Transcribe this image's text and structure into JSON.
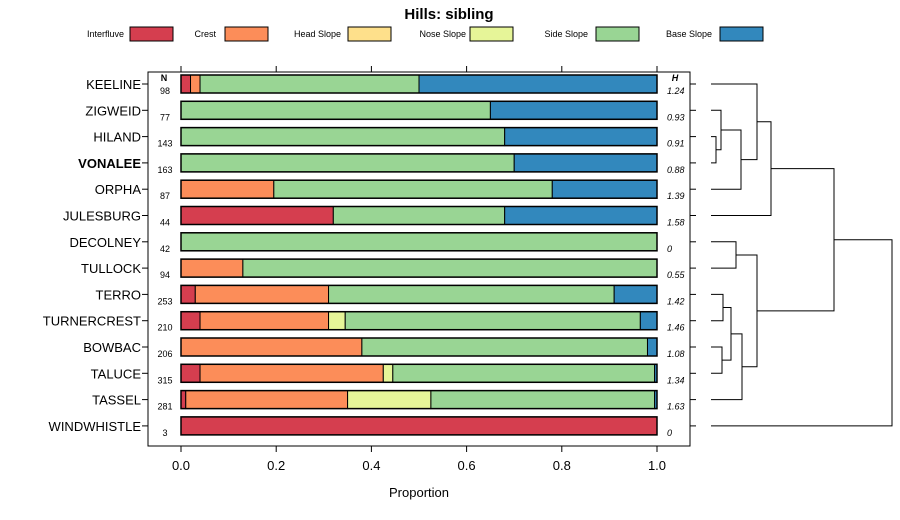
{
  "chart_data": {
    "type": "stacked-bar-horizontal",
    "title": "Hills: sibling",
    "xlabel": "Proportion",
    "xlim": [
      0,
      1
    ],
    "xticks": [
      0,
      0.2,
      0.4,
      0.6,
      0.8,
      1
    ],
    "xtick_labels": [
      "0.0",
      "0.2",
      "0.4",
      "0.6",
      "0.8",
      "1.0"
    ],
    "n_header": "N",
    "h_header": "H",
    "highlighted_series": "VONALEE",
    "legend": [
      {
        "name": "Interfluve",
        "color": "#d53e4f"
      },
      {
        "name": "Crest",
        "color": "#fc8d59"
      },
      {
        "name": "Head Slope",
        "color": "#fee08b"
      },
      {
        "name": "Nose Slope",
        "color": "#e6f598"
      },
      {
        "name": "Side Slope",
        "color": "#99d594"
      },
      {
        "name": "Base Slope",
        "color": "#3288bd"
      }
    ],
    "rows": [
      {
        "name": "KEELINE",
        "n": "98",
        "h": "1.24",
        "values": [
          0.02,
          0.02,
          0,
          0,
          0.46,
          0.5
        ]
      },
      {
        "name": "ZIGWEID",
        "n": "77",
        "h": "0.93",
        "values": [
          0,
          0,
          0,
          0,
          0.65,
          0.35
        ]
      },
      {
        "name": "HILAND",
        "n": "143",
        "h": "0.91",
        "values": [
          0,
          0,
          0,
          0,
          0.68,
          0.32
        ]
      },
      {
        "name": "VONALEE",
        "n": "163",
        "h": "0.88",
        "values": [
          0,
          0,
          0,
          0,
          0.7,
          0.3
        ]
      },
      {
        "name": "ORPHA",
        "n": "87",
        "h": "1.39",
        "values": [
          0,
          0.195,
          0,
          0,
          0.585,
          0.22
        ]
      },
      {
        "name": "JULESBURG",
        "n": "44",
        "h": "1.58",
        "values": [
          0.32,
          0,
          0,
          0,
          0.36,
          0.32
        ]
      },
      {
        "name": "DECOLNEY",
        "n": "42",
        "h": "0",
        "values": [
          0,
          0,
          0,
          0,
          1.0,
          0
        ]
      },
      {
        "name": "TULLOCK",
        "n": "94",
        "h": "0.55",
        "values": [
          0,
          0.13,
          0,
          0,
          0.87,
          0
        ]
      },
      {
        "name": "TERRO",
        "n": "253",
        "h": "1.42",
        "values": [
          0.03,
          0.28,
          0,
          0,
          0.6,
          0.09
        ]
      },
      {
        "name": "TURNERCREST",
        "n": "210",
        "h": "1.46",
        "values": [
          0.04,
          0.27,
          0,
          0.035,
          0.62,
          0.035
        ]
      },
      {
        "name": "BOWBAC",
        "n": "206",
        "h": "1.08",
        "values": [
          0,
          0.38,
          0,
          0,
          0.6,
          0.02
        ]
      },
      {
        "name": "TALUCE",
        "n": "315",
        "h": "1.34",
        "values": [
          0.04,
          0.385,
          0,
          0.02,
          0.55,
          0.005
        ]
      },
      {
        "name": "TASSEL",
        "n": "281",
        "h": "1.63",
        "values": [
          0.01,
          0.34,
          0,
          0.175,
          0.47,
          0.005
        ]
      },
      {
        "name": "WINDWHISTLE",
        "n": "3",
        "h": "0",
        "values": [
          1.0,
          0,
          0,
          0,
          0,
          0
        ]
      }
    ]
  }
}
